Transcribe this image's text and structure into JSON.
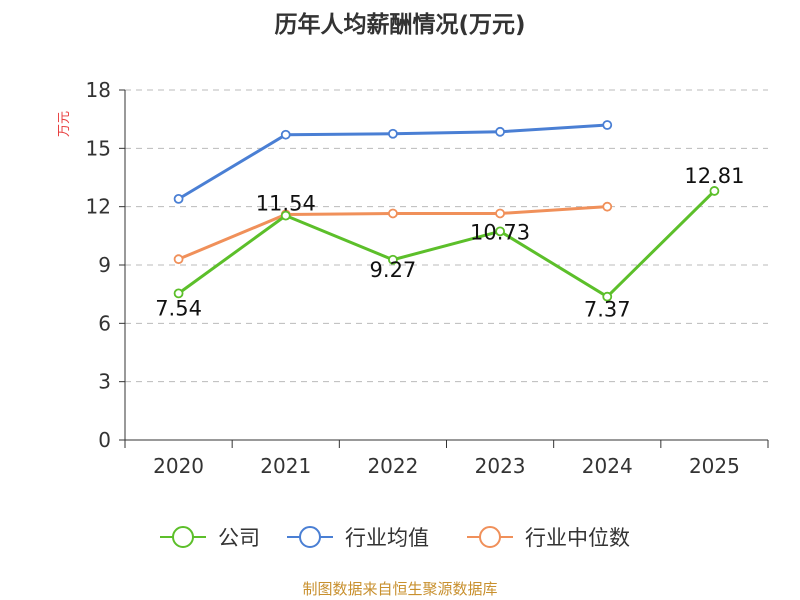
{
  "chart_data": {
    "type": "line",
    "title": "历年人均薪酬情况(万元)",
    "ylabel": "万元",
    "xlabel": "",
    "categories": [
      "2020",
      "2021",
      "2022",
      "2023",
      "2024",
      "2025"
    ],
    "ylim": [
      0,
      18
    ],
    "yticks": [
      0,
      3,
      6,
      9,
      12,
      15,
      18
    ],
    "grid": true,
    "legend_position": "bottom",
    "series": [
      {
        "name": "公司",
        "color": "#5cbf2a",
        "values": [
          7.54,
          11.54,
          9.27,
          10.73,
          7.37,
          12.81
        ],
        "labels": [
          "7.54",
          "11.54",
          "9.27",
          "10.73",
          "7.37",
          "12.81"
        ]
      },
      {
        "name": "行业均值",
        "color": "#4a7fd4",
        "values": [
          12.4,
          15.7,
          15.75,
          15.85,
          16.2,
          null
        ]
      },
      {
        "name": "行业中位数",
        "color": "#f0905a",
        "values": [
          9.3,
          11.6,
          11.65,
          11.65,
          12.0,
          null
        ]
      }
    ]
  },
  "source": "制图数据来自恒生聚源数据库"
}
